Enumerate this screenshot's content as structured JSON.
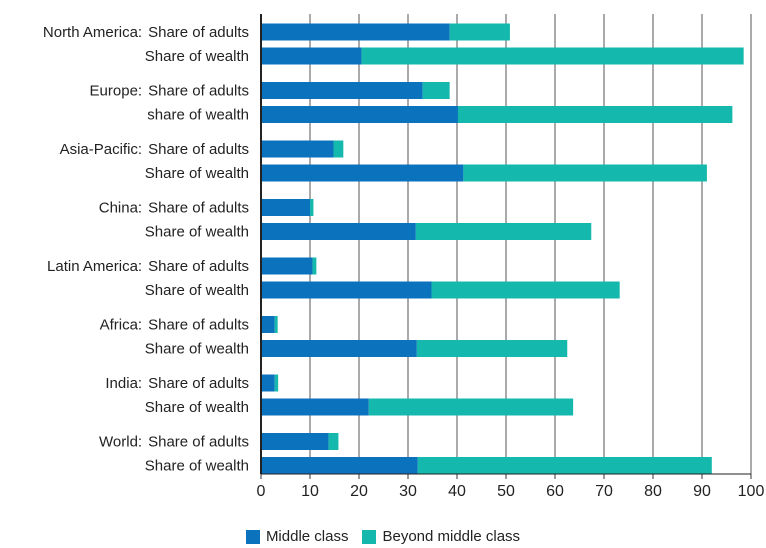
{
  "chart_data": {
    "type": "bar",
    "orientation": "horizontal",
    "stacked": true,
    "groups": [
      {
        "region": "North America:",
        "rows": [
          {
            "label": "Share of adults",
            "middle": 38.5,
            "beyond": 12.3
          },
          {
            "label": "Share of wealth",
            "middle": 20.5,
            "beyond": 78.0
          }
        ]
      },
      {
        "region": "Europe:",
        "rows": [
          {
            "label": "Share of adults",
            "middle": 33.0,
            "beyond": 5.5
          },
          {
            "label": "share of wealth",
            "middle": 40.2,
            "beyond": 56.0
          }
        ]
      },
      {
        "region": "Asia-Pacific:",
        "rows": [
          {
            "label": "Share of adults",
            "middle": 14.8,
            "beyond": 2.0
          },
          {
            "label": "Share of wealth",
            "middle": 41.3,
            "beyond": 49.7
          }
        ]
      },
      {
        "region": "China:",
        "rows": [
          {
            "label": "Share of adults",
            "middle": 10.0,
            "beyond": 0.7
          },
          {
            "label": "Share of wealth",
            "middle": 31.6,
            "beyond": 35.8
          }
        ]
      },
      {
        "region": "Latin America:",
        "rows": [
          {
            "label": "Share of adults",
            "middle": 10.5,
            "beyond": 0.8
          },
          {
            "label": "Share of wealth",
            "middle": 34.8,
            "beyond": 38.4
          }
        ]
      },
      {
        "region": "Africa:",
        "rows": [
          {
            "label": "Share of adults",
            "middle": 2.8,
            "beyond": 0.6
          },
          {
            "label": "Share of wealth",
            "middle": 31.8,
            "beyond": 30.7
          }
        ]
      },
      {
        "region": "India:",
        "rows": [
          {
            "label": "Share of adults",
            "middle": 2.8,
            "beyond": 0.7
          },
          {
            "label": "Share of wealth",
            "middle": 22.0,
            "beyond": 41.7
          }
        ]
      },
      {
        "region": "World:",
        "rows": [
          {
            "label": "Share of adults",
            "middle": 13.8,
            "beyond": 2.0
          },
          {
            "label": "Share of wealth",
            "middle": 32.0,
            "beyond": 60.0
          }
        ]
      }
    ],
    "series": [
      {
        "name": "Middle class",
        "color": "#0b72bd"
      },
      {
        "name": "Beyond middle class",
        "color": "#14b8ac"
      }
    ],
    "xticks": [
      "0",
      "10",
      "20",
      "30",
      "40",
      "50",
      "60",
      "70",
      "80",
      "90",
      "100"
    ],
    "xlim": [
      0,
      100
    ],
    "grid": "vertical",
    "legend_position": "bottom-center",
    "title": "",
    "xlabel": "",
    "ylabel": ""
  }
}
